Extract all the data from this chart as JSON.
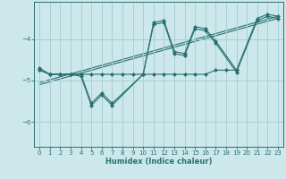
{
  "xlabel": "Humidex (Indice chaleur)",
  "ylabel": "",
  "bg_color": "#cce8ea",
  "grid_color": "#aacfd2",
  "line_color": "#2a7070",
  "xlim": [
    -0.5,
    23.5
  ],
  "ylim": [
    -6.6,
    -3.1
  ],
  "yticks": [
    -6,
    -5,
    -4
  ],
  "xticks": [
    0,
    1,
    2,
    3,
    4,
    5,
    6,
    7,
    8,
    9,
    10,
    11,
    12,
    13,
    14,
    15,
    16,
    17,
    18,
    19,
    20,
    21,
    22,
    23
  ],
  "series": [
    {
      "x": [
        0,
        1,
        2,
        3,
        4,
        5,
        6,
        7,
        10,
        11,
        12,
        13,
        14,
        15,
        16,
        17,
        19,
        21,
        22,
        23
      ],
      "y": [
        -4.7,
        -4.85,
        -4.85,
        -4.85,
        -4.85,
        -5.55,
        -5.3,
        -5.55,
        -4.85,
        -3.6,
        -3.55,
        -4.3,
        -4.35,
        -3.7,
        -3.75,
        -4.05,
        -4.75,
        -3.5,
        -3.4,
        -3.45
      ]
    },
    {
      "x": [
        0,
        1,
        2,
        3,
        4,
        5,
        6,
        7,
        10,
        11,
        12,
        13,
        14,
        15,
        16,
        17,
        19,
        21,
        22,
        23
      ],
      "y": [
        -4.75,
        -4.85,
        -4.85,
        -4.85,
        -4.9,
        -5.6,
        -5.35,
        -5.6,
        -4.85,
        -3.65,
        -3.6,
        -4.35,
        -4.4,
        -3.75,
        -3.8,
        -4.1,
        -4.8,
        -3.55,
        -3.45,
        -3.5
      ]
    },
    {
      "x": [
        0,
        1,
        2,
        3,
        4,
        5,
        6,
        7,
        8,
        9,
        10,
        11,
        12,
        13,
        14,
        15,
        16,
        17,
        18,
        19
      ],
      "y": [
        -4.75,
        -4.85,
        -4.85,
        -4.85,
        -4.85,
        -4.85,
        -4.85,
        -4.85,
        -4.85,
        -4.85,
        -4.85,
        -4.85,
        -4.85,
        -4.85,
        -4.85,
        -4.85,
        -4.85,
        -4.75,
        -4.75,
        -4.75
      ]
    }
  ],
  "regression_lines": [
    {
      "x": [
        0,
        23
      ],
      "y": [
        -5.05,
        -3.45
      ]
    },
    {
      "x": [
        0,
        23
      ],
      "y": [
        -5.1,
        -3.5
      ]
    }
  ]
}
